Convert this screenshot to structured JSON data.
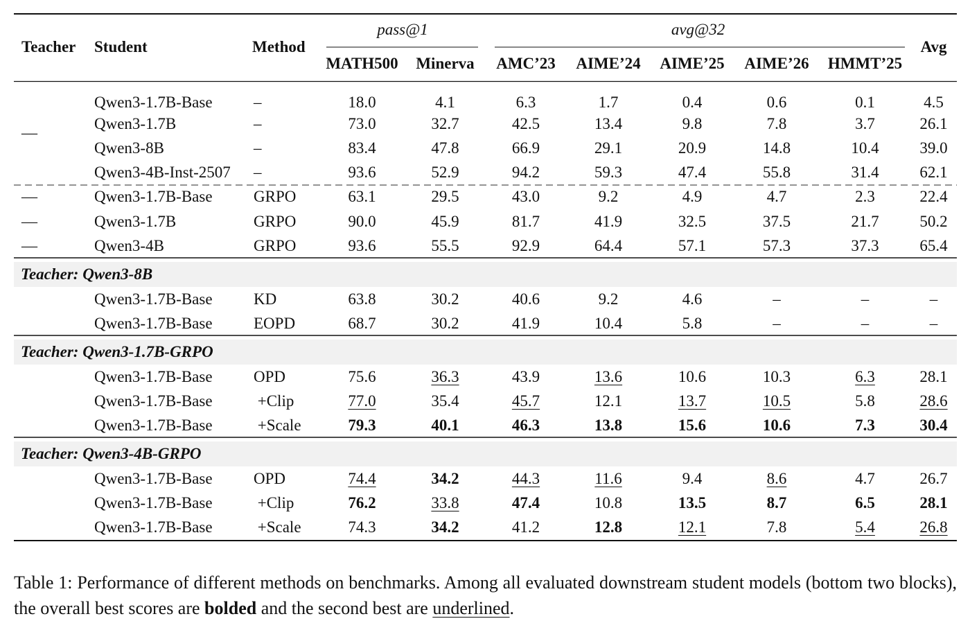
{
  "header": {
    "teacher": "Teacher",
    "student": "Student",
    "method": "Method",
    "group_pass": "pass@1",
    "group_avg": "avg@32",
    "cols": [
      "MATH500",
      "Minerva",
      "AMC’23",
      "AIME’24",
      "AIME’25",
      "AIME’26",
      "HMMT’25"
    ],
    "avg": "Avg"
  },
  "baseline_block": {
    "teacher": "—",
    "rows": [
      {
        "student": "Qwen3-1.7B-Base",
        "method": "–",
        "values": [
          "18.0",
          "4.1",
          "6.3",
          "1.7",
          "0.4",
          "0.6",
          "0.1",
          "4.5"
        ]
      },
      {
        "student": "Qwen3-1.7B",
        "method": "–",
        "values": [
          "73.0",
          "32.7",
          "42.5",
          "13.4",
          "9.8",
          "7.8",
          "3.7",
          "26.1"
        ]
      },
      {
        "student": "Qwen3-8B",
        "method": "–",
        "values": [
          "83.4",
          "47.8",
          "66.9",
          "29.1",
          "20.9",
          "14.8",
          "10.4",
          "39.0"
        ]
      },
      {
        "student": "Qwen3-4B-Inst-2507",
        "method": "–",
        "values": [
          "93.6",
          "52.9",
          "94.2",
          "59.3",
          "47.4",
          "55.8",
          "31.4",
          "62.1"
        ]
      }
    ]
  },
  "grpo_block": {
    "rows": [
      {
        "teacher": "—",
        "student": "Qwen3-1.7B-Base",
        "method": "GRPO",
        "values": [
          "63.1",
          "29.5",
          "43.0",
          "9.2",
          "4.9",
          "4.7",
          "2.3",
          "22.4"
        ]
      },
      {
        "teacher": "—",
        "student": "Qwen3-1.7B",
        "method": "GRPO",
        "values": [
          "90.0",
          "45.9",
          "81.7",
          "41.9",
          "32.5",
          "37.5",
          "21.7",
          "50.2"
        ]
      },
      {
        "teacher": "—",
        "student": "Qwen3-4B",
        "method": "GRPO",
        "values": [
          "93.6",
          "55.5",
          "92.9",
          "64.4",
          "57.1",
          "57.3",
          "37.3",
          "65.4"
        ]
      }
    ]
  },
  "teacher_blocks": [
    {
      "title": "Teacher: Qwen3-8B",
      "rows": [
        {
          "student": "Qwen3-1.7B-Base",
          "method": "KD",
          "values": [
            "63.8",
            "30.2",
            "40.6",
            "9.2",
            "4.6",
            "–",
            "–",
            "–"
          ],
          "bold": [],
          "underline": []
        },
        {
          "student": "Qwen3-1.7B-Base",
          "method": "EOPD",
          "values": [
            "68.7",
            "30.2",
            "41.9",
            "10.4",
            "5.8",
            "–",
            "–",
            "–"
          ],
          "bold": [],
          "underline": []
        }
      ]
    },
    {
      "title": "Teacher: Qwen3-1.7B-GRPO",
      "rows": [
        {
          "student": "Qwen3-1.7B-Base",
          "method": "OPD",
          "values": [
            "75.6",
            "36.3",
            "43.9",
            "13.6",
            "10.6",
            "10.3",
            "6.3",
            "28.1"
          ],
          "bold": [],
          "underline": [
            1,
            3,
            6
          ]
        },
        {
          "student": "Qwen3-1.7B-Base",
          "method": " +Clip",
          "values": [
            "77.0",
            "35.4",
            "45.7",
            "12.1",
            "13.7",
            "10.5",
            "5.8",
            "28.6"
          ],
          "bold": [],
          "underline": [
            0,
            2,
            4,
            5,
            7
          ]
        },
        {
          "student": "Qwen3-1.7B-Base",
          "method": " +Scale",
          "values": [
            "79.3",
            "40.1",
            "46.3",
            "13.8",
            "15.6",
            "10.6",
            "7.3",
            "30.4"
          ],
          "bold": [
            0,
            1,
            2,
            3,
            4,
            5,
            6,
            7
          ],
          "underline": []
        }
      ]
    },
    {
      "title": "Teacher: Qwen3-4B-GRPO",
      "rows": [
        {
          "student": "Qwen3-1.7B-Base",
          "method": "OPD",
          "values": [
            "74.4",
            "34.2",
            "44.3",
            "11.6",
            "9.4",
            "8.6",
            "4.7",
            "26.7"
          ],
          "bold": [
            1
          ],
          "underline": [
            0,
            2,
            3,
            5
          ]
        },
        {
          "student": "Qwen3-1.7B-Base",
          "method": " +Clip",
          "values": [
            "76.2",
            "33.8",
            "47.4",
            "10.8",
            "13.5",
            "8.7",
            "6.5",
            "28.1"
          ],
          "bold": [
            0,
            2,
            4,
            5,
            6,
            7
          ],
          "underline": [
            1
          ]
        },
        {
          "student": "Qwen3-1.7B-Base",
          "method": " +Scale",
          "values": [
            "74.3",
            "34.2",
            "41.2",
            "12.8",
            "12.1",
            "7.8",
            "5.4",
            "26.8"
          ],
          "bold": [
            1,
            3
          ],
          "underline": [
            4,
            6,
            7
          ]
        }
      ]
    }
  ],
  "caption": {
    "part1": "Table 1: Performance of different methods on benchmarks. Among all evaluated downstream student models (bottom two blocks), the overall best scores are ",
    "bold_word": "bolded",
    "part2": " and the second best are ",
    "underline_word": "underlined",
    "part3": "."
  }
}
